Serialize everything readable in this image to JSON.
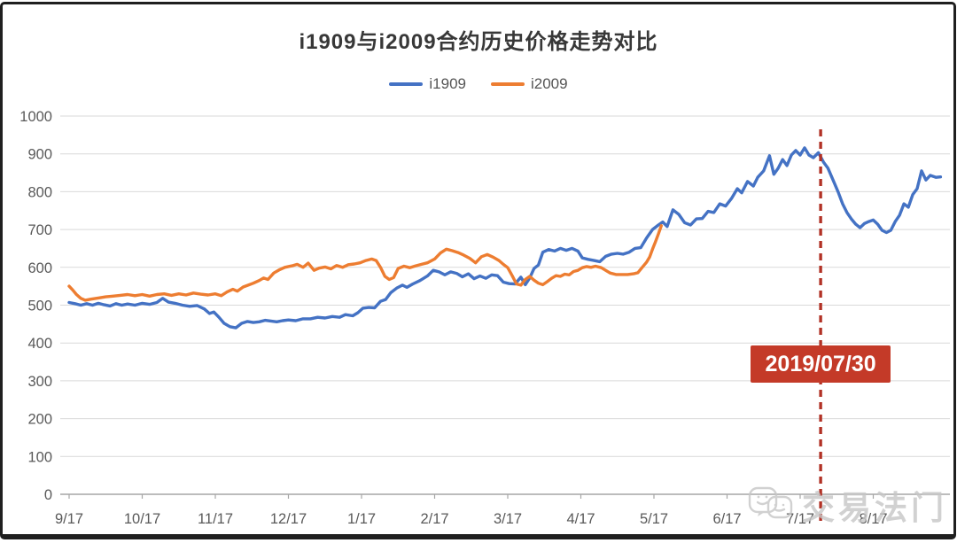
{
  "watermark": {
    "text": "交易法门"
  },
  "chart_data": {
    "type": "line",
    "title": "i1909与i2009合约历史价格走势对比",
    "xlabel": "",
    "ylabel": "",
    "x_axis": {
      "labels": [
        "9/17",
        "10/17",
        "11/17",
        "12/17",
        "1/17",
        "2/17",
        "3/17",
        "4/17",
        "5/17",
        "6/17",
        "7/17",
        "8/17"
      ]
    },
    "y_axis": {
      "min": 0,
      "max": 1000,
      "step": 100,
      "tick_labels": [
        "0",
        "100",
        "200",
        "300",
        "400",
        "500",
        "600",
        "700",
        "800",
        "900",
        "1000"
      ]
    },
    "grid": true,
    "legend_position": "top",
    "annotation": {
      "date": "2019/07/30",
      "x_month": 10.28,
      "line_style": "dashed",
      "line_color": "#b23226",
      "badge_color": "#c43a28",
      "badge_text_color": "#ffffff"
    },
    "series": [
      {
        "name": "i1909",
        "color": "#4472C4",
        "points": [
          [
            0,
            507
          ],
          [
            0.08,
            504
          ],
          [
            0.16,
            500
          ],
          [
            0.24,
            504
          ],
          [
            0.32,
            500
          ],
          [
            0.4,
            505
          ],
          [
            0.48,
            501
          ],
          [
            0.56,
            498
          ],
          [
            0.64,
            504
          ],
          [
            0.72,
            500
          ],
          [
            0.8,
            503
          ],
          [
            0.9,
            500
          ],
          [
            1.0,
            505
          ],
          [
            1.1,
            502
          ],
          [
            1.2,
            507
          ],
          [
            1.28,
            518
          ],
          [
            1.36,
            508
          ],
          [
            1.45,
            505
          ],
          [
            1.55,
            500
          ],
          [
            1.65,
            497
          ],
          [
            1.75,
            499
          ],
          [
            1.85,
            490
          ],
          [
            1.92,
            478
          ],
          [
            1.98,
            482
          ],
          [
            2.05,
            468
          ],
          [
            2.12,
            452
          ],
          [
            2.2,
            443
          ],
          [
            2.28,
            440
          ],
          [
            2.36,
            452
          ],
          [
            2.44,
            457
          ],
          [
            2.52,
            454
          ],
          [
            2.6,
            456
          ],
          [
            2.68,
            460
          ],
          [
            2.76,
            458
          ],
          [
            2.84,
            456
          ],
          [
            2.92,
            459
          ],
          [
            3.0,
            461
          ],
          [
            3.1,
            459
          ],
          [
            3.2,
            464
          ],
          [
            3.3,
            464
          ],
          [
            3.4,
            468
          ],
          [
            3.5,
            466
          ],
          [
            3.6,
            470
          ],
          [
            3.7,
            468
          ],
          [
            3.78,
            475
          ],
          [
            3.88,
            472
          ],
          [
            3.95,
            480
          ],
          [
            4.02,
            492
          ],
          [
            4.1,
            494
          ],
          [
            4.18,
            493
          ],
          [
            4.26,
            510
          ],
          [
            4.33,
            515
          ],
          [
            4.4,
            533
          ],
          [
            4.48,
            545
          ],
          [
            4.56,
            553
          ],
          [
            4.62,
            547
          ],
          [
            4.7,
            556
          ],
          [
            4.8,
            565
          ],
          [
            4.9,
            577
          ],
          [
            4.98,
            592
          ],
          [
            5.06,
            588
          ],
          [
            5.14,
            580
          ],
          [
            5.22,
            588
          ],
          [
            5.3,
            584
          ],
          [
            5.38,
            575
          ],
          [
            5.46,
            583
          ],
          [
            5.54,
            570
          ],
          [
            5.62,
            577
          ],
          [
            5.7,
            571
          ],
          [
            5.78,
            580
          ],
          [
            5.86,
            578
          ],
          [
            5.94,
            561
          ],
          [
            6.02,
            557
          ],
          [
            6.1,
            556
          ],
          [
            6.18,
            574
          ],
          [
            6.24,
            554
          ],
          [
            6.3,
            572
          ],
          [
            6.36,
            597
          ],
          [
            6.42,
            606
          ],
          [
            6.48,
            640
          ],
          [
            6.56,
            647
          ],
          [
            6.64,
            643
          ],
          [
            6.72,
            650
          ],
          [
            6.8,
            645
          ],
          [
            6.88,
            650
          ],
          [
            6.96,
            643
          ],
          [
            7.02,
            625
          ],
          [
            7.1,
            621
          ],
          [
            7.18,
            618
          ],
          [
            7.26,
            615
          ],
          [
            7.34,
            629
          ],
          [
            7.42,
            635
          ],
          [
            7.5,
            637
          ],
          [
            7.58,
            635
          ],
          [
            7.66,
            640
          ],
          [
            7.74,
            650
          ],
          [
            7.82,
            652
          ],
          [
            7.9,
            678
          ],
          [
            7.98,
            700
          ],
          [
            8.06,
            712
          ],
          [
            8.12,
            720
          ],
          [
            8.18,
            708
          ],
          [
            8.26,
            752
          ],
          [
            8.34,
            740
          ],
          [
            8.42,
            718
          ],
          [
            8.5,
            712
          ],
          [
            8.58,
            728
          ],
          [
            8.66,
            729
          ],
          [
            8.74,
            748
          ],
          [
            8.82,
            745
          ],
          [
            8.9,
            768
          ],
          [
            8.98,
            762
          ],
          [
            9.06,
            782
          ],
          [
            9.14,
            808
          ],
          [
            9.2,
            797
          ],
          [
            9.28,
            827
          ],
          [
            9.36,
            815
          ],
          [
            9.42,
            838
          ],
          [
            9.5,
            855
          ],
          [
            9.58,
            895
          ],
          [
            9.64,
            846
          ],
          [
            9.7,
            862
          ],
          [
            9.76,
            885
          ],
          [
            9.82,
            869
          ],
          [
            9.88,
            897
          ],
          [
            9.94,
            909
          ],
          [
            10.0,
            897
          ],
          [
            10.06,
            916
          ],
          [
            10.12,
            897
          ],
          [
            10.18,
            890
          ],
          [
            10.25,
            903
          ],
          [
            10.32,
            878
          ],
          [
            10.38,
            862
          ],
          [
            10.45,
            831
          ],
          [
            10.52,
            799
          ],
          [
            10.58,
            768
          ],
          [
            10.64,
            745
          ],
          [
            10.7,
            728
          ],
          [
            10.76,
            714
          ],
          [
            10.82,
            705
          ],
          [
            10.88,
            716
          ],
          [
            10.94,
            721
          ],
          [
            11.0,
            725
          ],
          [
            11.06,
            714
          ],
          [
            11.12,
            698
          ],
          [
            11.18,
            692
          ],
          [
            11.24,
            698
          ],
          [
            11.3,
            721
          ],
          [
            11.36,
            738
          ],
          [
            11.42,
            768
          ],
          [
            11.48,
            759
          ],
          [
            11.54,
            792
          ],
          [
            11.6,
            808
          ],
          [
            11.66,
            855
          ],
          [
            11.72,
            831
          ],
          [
            11.78,
            843
          ],
          [
            11.86,
            838
          ],
          [
            11.92,
            839
          ]
        ]
      },
      {
        "name": "i2009",
        "color": "#ED7D31",
        "points": [
          [
            0,
            550
          ],
          [
            0.05,
            540
          ],
          [
            0.1,
            528
          ],
          [
            0.16,
            518
          ],
          [
            0.22,
            513
          ],
          [
            0.3,
            516
          ],
          [
            0.4,
            519
          ],
          [
            0.5,
            522
          ],
          [
            0.6,
            524
          ],
          [
            0.7,
            526
          ],
          [
            0.8,
            528
          ],
          [
            0.9,
            525
          ],
          [
            1.0,
            528
          ],
          [
            1.1,
            524
          ],
          [
            1.2,
            528
          ],
          [
            1.3,
            530
          ],
          [
            1.4,
            526
          ],
          [
            1.5,
            530
          ],
          [
            1.6,
            527
          ],
          [
            1.7,
            532
          ],
          [
            1.8,
            529
          ],
          [
            1.9,
            527
          ],
          [
            2.0,
            530
          ],
          [
            2.08,
            525
          ],
          [
            2.16,
            535
          ],
          [
            2.24,
            542
          ],
          [
            2.3,
            537
          ],
          [
            2.38,
            548
          ],
          [
            2.45,
            553
          ],
          [
            2.52,
            558
          ],
          [
            2.6,
            565
          ],
          [
            2.66,
            572
          ],
          [
            2.72,
            568
          ],
          [
            2.8,
            585
          ],
          [
            2.88,
            594
          ],
          [
            2.95,
            600
          ],
          [
            3.05,
            604
          ],
          [
            3.12,
            608
          ],
          [
            3.2,
            600
          ],
          [
            3.27,
            611
          ],
          [
            3.35,
            592
          ],
          [
            3.42,
            598
          ],
          [
            3.5,
            601
          ],
          [
            3.58,
            596
          ],
          [
            3.66,
            605
          ],
          [
            3.74,
            600
          ],
          [
            3.82,
            607
          ],
          [
            3.9,
            609
          ],
          [
            3.98,
            612
          ],
          [
            4.06,
            618
          ],
          [
            4.14,
            622
          ],
          [
            4.2,
            618
          ],
          [
            4.26,
            600
          ],
          [
            4.32,
            576
          ],
          [
            4.38,
            568
          ],
          [
            4.44,
            573
          ],
          [
            4.5,
            597
          ],
          [
            4.58,
            603
          ],
          [
            4.66,
            599
          ],
          [
            4.74,
            604
          ],
          [
            4.82,
            608
          ],
          [
            4.9,
            612
          ],
          [
            5.0,
            622
          ],
          [
            5.08,
            638
          ],
          [
            5.16,
            648
          ],
          [
            5.24,
            644
          ],
          [
            5.32,
            639
          ],
          [
            5.4,
            632
          ],
          [
            5.48,
            624
          ],
          [
            5.56,
            612
          ],
          [
            5.64,
            628
          ],
          [
            5.72,
            634
          ],
          [
            5.8,
            627
          ],
          [
            5.88,
            618
          ],
          [
            5.94,
            608
          ],
          [
            6.0,
            599
          ],
          [
            6.06,
            578
          ],
          [
            6.12,
            556
          ],
          [
            6.18,
            553
          ],
          [
            6.24,
            568
          ],
          [
            6.3,
            576
          ],
          [
            6.36,
            566
          ],
          [
            6.42,
            558
          ],
          [
            6.48,
            554
          ],
          [
            6.54,
            562
          ],
          [
            6.6,
            571
          ],
          [
            6.66,
            578
          ],
          [
            6.72,
            576
          ],
          [
            6.78,
            582
          ],
          [
            6.84,
            580
          ],
          [
            6.9,
            589
          ],
          [
            6.96,
            592
          ],
          [
            7.02,
            599
          ],
          [
            7.08,
            602
          ],
          [
            7.14,
            600
          ],
          [
            7.2,
            603
          ],
          [
            7.28,
            599
          ],
          [
            7.34,
            592
          ],
          [
            7.4,
            585
          ],
          [
            7.48,
            581
          ],
          [
            7.56,
            581
          ],
          [
            7.64,
            581
          ],
          [
            7.72,
            583
          ],
          [
            7.78,
            586
          ],
          [
            7.84,
            600
          ],
          [
            7.9,
            614
          ],
          [
            7.94,
            627
          ],
          [
            7.98,
            648
          ],
          [
            8.02,
            667
          ],
          [
            8.06,
            688
          ],
          [
            8.1,
            710
          ]
        ]
      }
    ]
  }
}
